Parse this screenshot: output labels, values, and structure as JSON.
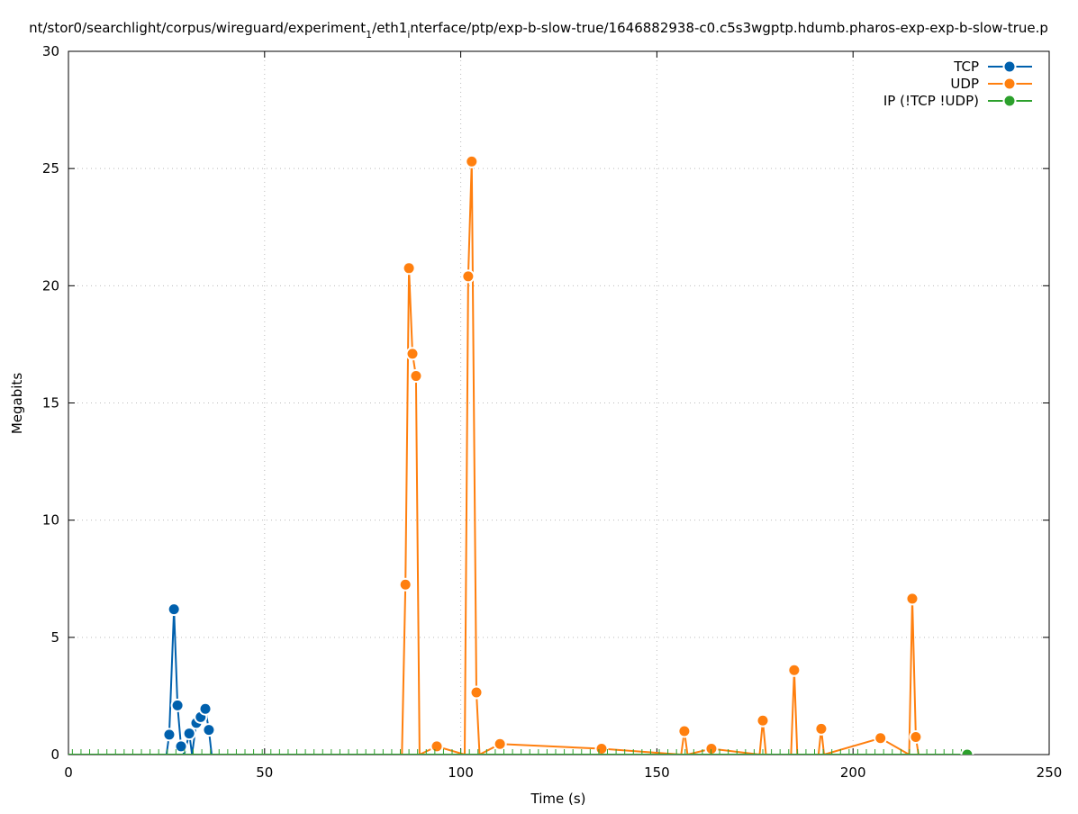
{
  "chart_data": {
    "type": "line",
    "title": "nt/stor0/searchlight/corpus/wireguard/experiment_1/eth1_interface/ptp/exp-b-slow-true/1646882938-c0.c5s3wgptp.hdumb.pharos-exp-exp-b-slow-true.p",
    "title_parts": {
      "a": "nt/stor0/searchlight/corpus/wireguard/experiment",
      "sub1": "1",
      "b": "/eth1",
      "sub2": "i",
      "c": "nterface/ptp/exp-b-slow-true/1646882938-c0.c5s3wgptp.hdumb.pharos-exp-exp-b-slow-true.p"
    },
    "xlabel": "Time (s)",
    "ylabel": "Megabits",
    "xlim": [
      0,
      250
    ],
    "ylim": [
      0,
      30
    ],
    "xticks": [
      0,
      50,
      100,
      150,
      200,
      250
    ],
    "yticks": [
      0,
      5,
      10,
      15,
      20,
      25,
      30
    ],
    "grid": true,
    "legend_position": "top-right",
    "series": [
      {
        "name": "TCP",
        "color": "#0060ad",
        "points": [
          [
            25,
            0
          ],
          [
            25.7,
            0.85
          ],
          [
            26.9,
            6.2
          ],
          [
            27.8,
            2.1
          ],
          [
            28.7,
            0.35
          ],
          [
            29.5,
            0
          ],
          [
            30.8,
            0.9
          ],
          [
            31.5,
            0
          ],
          [
            32.6,
            1.35
          ],
          [
            33.7,
            1.6
          ],
          [
            34.9,
            1.95
          ],
          [
            35.8,
            1.05
          ],
          [
            36.5,
            0
          ]
        ]
      },
      {
        "name": "UDP",
        "color": "#ff7f0e",
        "points": [
          [
            85,
            0
          ],
          [
            85.9,
            7.25
          ],
          [
            86.8,
            20.75
          ],
          [
            87.7,
            17.1
          ],
          [
            88.6,
            16.15
          ],
          [
            89.5,
            0
          ],
          [
            93.9,
            0.35
          ],
          [
            101,
            0
          ],
          [
            101.9,
            20.4
          ],
          [
            102.8,
            25.3
          ],
          [
            104,
            2.65
          ],
          [
            104.8,
            0
          ],
          [
            110,
            0.45
          ],
          [
            135.9,
            0.25
          ],
          [
            156.2,
            0
          ],
          [
            157,
            1.0
          ],
          [
            157.8,
            0
          ],
          [
            163.9,
            0.25
          ],
          [
            176.2,
            0
          ],
          [
            177,
            1.45
          ],
          [
            177.8,
            0
          ],
          [
            184.2,
            0
          ],
          [
            185,
            3.6
          ],
          [
            185.8,
            0
          ],
          [
            191.2,
            0
          ],
          [
            191.9,
            1.1
          ],
          [
            192.6,
            0
          ],
          [
            207,
            0.7
          ],
          [
            214.3,
            0
          ],
          [
            215.1,
            6.65
          ],
          [
            216,
            0.75
          ],
          [
            216.7,
            0
          ]
        ]
      },
      {
        "name": "IP (!TCP  !UDP)",
        "color": "#2ca02c",
        "points": [
          [
            0,
            0
          ],
          [
            229.1,
            0
          ]
        ]
      }
    ]
  }
}
